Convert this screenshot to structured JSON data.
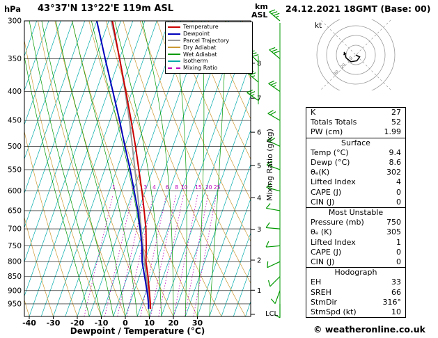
{
  "header": {
    "pressure_unit": "hPa",
    "station": "43°37'N 13°22'E 119m ASL",
    "km_label": "km",
    "asl_label": "ASL",
    "datetime": "24.12.2021 18GMT (Base: 00)",
    "kt_label": "kt"
  },
  "axes": {
    "bottom_label": "Dewpoint / Temperature (°C)",
    "right_label": "Mixing Ratio (g/kg)",
    "lcl_label": "LCL"
  },
  "legend": {
    "items": [
      {
        "label": "Temperature",
        "color": "#cc0000",
        "dash": false
      },
      {
        "label": "Dewpoint",
        "color": "#0000bb",
        "dash": false
      },
      {
        "label": "Parcel Trajectory",
        "color": "#999999",
        "dash": false
      },
      {
        "label": "Dry Adiabat",
        "color": "#cc9933",
        "dash": false
      },
      {
        "label": "Wet Adiabat",
        "color": "#009900",
        "dash": false
      },
      {
        "label": "Isotherm",
        "color": "#00aaaa",
        "dash": false
      },
      {
        "label": "Mixing Ratio",
        "color": "#bb00bb",
        "dash": true
      }
    ]
  },
  "chart_data": {
    "type": "skewt_log_p_sounding",
    "pressure_axis_hpa": [
      300,
      350,
      400,
      450,
      500,
      550,
      600,
      650,
      700,
      750,
      800,
      850,
      900,
      950
    ],
    "pressure_range_hpa": [
      300,
      1000
    ],
    "temp_axis_c": [
      -40,
      -30,
      -20,
      -10,
      0,
      10,
      20,
      30
    ],
    "km_asl_ticks": [
      1,
      2,
      3,
      4,
      5,
      6,
      7,
      8
    ],
    "mixing_ratio_g_kg": [
      1,
      2,
      3,
      4,
      6,
      8,
      10,
      15,
      20,
      25
    ],
    "temperature_profile_p_t": [
      [
        970,
        9.4
      ],
      [
        950,
        8.6
      ],
      [
        925,
        7.4
      ],
      [
        900,
        6.2
      ],
      [
        850,
        3.6
      ],
      [
        800,
        0.6
      ],
      [
        750,
        -1.6
      ],
      [
        700,
        -4.2
      ],
      [
        650,
        -7.6
      ],
      [
        600,
        -11.4
      ],
      [
        550,
        -15.8
      ],
      [
        500,
        -20.6
      ],
      [
        450,
        -26.2
      ],
      [
        400,
        -32.6
      ],
      [
        350,
        -40.0
      ],
      [
        300,
        -48.5
      ]
    ],
    "dewpoint_profile_p_t": [
      [
        970,
        8.6
      ],
      [
        950,
        7.8
      ],
      [
        925,
        6.6
      ],
      [
        900,
        5.2
      ],
      [
        850,
        2.2
      ],
      [
        800,
        -1.0
      ],
      [
        750,
        -3.4
      ],
      [
        700,
        -6.6
      ],
      [
        650,
        -10.2
      ],
      [
        600,
        -14.6
      ],
      [
        550,
        -19.4
      ],
      [
        500,
        -25.0
      ],
      [
        450,
        -31.0
      ],
      [
        400,
        -38.0
      ],
      [
        350,
        -46.0
      ],
      [
        300,
        -55.0
      ]
    ],
    "parcel_profile_p_t": [
      [
        970,
        9.4
      ],
      [
        950,
        8.2
      ],
      [
        925,
        6.9
      ],
      [
        900,
        5.6
      ],
      [
        850,
        2.9
      ],
      [
        800,
        0.0
      ],
      [
        750,
        -3.0
      ],
      [
        700,
        -6.2
      ],
      [
        650,
        -9.6
      ],
      [
        600,
        -13.3
      ],
      [
        550,
        -17.4
      ],
      [
        500,
        -21.9
      ],
      [
        450,
        -26.9
      ],
      [
        400,
        -32.9
      ],
      [
        350,
        -39.9
      ],
      [
        300,
        -49.0
      ]
    ],
    "wind_barbs": [
      {
        "p": 300,
        "dir": 310,
        "spd": 35
      },
      {
        "p": 350,
        "dir": 310,
        "spd": 30
      },
      {
        "p": 400,
        "dir": 305,
        "spd": 25
      },
      {
        "p": 450,
        "dir": 300,
        "spd": 20
      },
      {
        "p": 500,
        "dir": 295,
        "spd": 20
      },
      {
        "p": 550,
        "dir": 290,
        "spd": 15
      },
      {
        "p": 600,
        "dir": 285,
        "spd": 15
      },
      {
        "p": 650,
        "dir": 280,
        "spd": 10
      },
      {
        "p": 700,
        "dir": 275,
        "spd": 10
      },
      {
        "p": 750,
        "dir": 265,
        "spd": 10
      },
      {
        "p": 800,
        "dir": 245,
        "spd": 10
      },
      {
        "p": 850,
        "dir": 225,
        "spd": 10
      },
      {
        "p": 900,
        "dir": 200,
        "spd": 10
      },
      {
        "p": 950,
        "dir": 180,
        "spd": 10
      }
    ],
    "wind_barbs_inner": [
      {
        "p": 355,
        "dir": 315,
        "spd": 30
      },
      {
        "p": 385,
        "dir": 310,
        "spd": 25
      },
      {
        "p": 415,
        "dir": 305,
        "spd": 25
      }
    ],
    "hodograph": {
      "rings_kt": [
        10,
        20,
        30,
        40
      ],
      "trace_uv_kt": [
        [
          0,
          0
        ],
        [
          4,
          -2
        ],
        [
          1,
          -6
        ],
        [
          -5,
          -7
        ],
        [
          -10,
          -3
        ],
        [
          -12,
          3
        ]
      ]
    }
  },
  "table": {
    "sections": [
      {
        "header": "",
        "rows": [
          [
            "K",
            "27"
          ],
          [
            "Totals Totals",
            "52"
          ],
          [
            "PW (cm)",
            "1.99"
          ]
        ]
      },
      {
        "header": "Surface",
        "rows": [
          [
            "Temp (°C)",
            "9.4"
          ],
          [
            "Dewp (°C)",
            "8.6"
          ],
          [
            "θₑ(K)",
            "302"
          ],
          [
            "Lifted Index",
            "4"
          ],
          [
            "CAPE (J)",
            "0"
          ],
          [
            "CIN (J)",
            "0"
          ]
        ]
      },
      {
        "header": "Most Unstable",
        "rows": [
          [
            "Pressure (mb)",
            "750"
          ],
          [
            "θₑ (K)",
            "305"
          ],
          [
            "Lifted Index",
            "1"
          ],
          [
            "CAPE (J)",
            "0"
          ],
          [
            "CIN (J)",
            "0"
          ]
        ]
      },
      {
        "header": "Hodograph",
        "rows": [
          [
            "EH",
            "33"
          ],
          [
            "SREH",
            "66"
          ],
          [
            "StmDir",
            "316°"
          ],
          [
            "StmSpd (kt)",
            "10"
          ]
        ]
      }
    ]
  },
  "footer": {
    "copyright": "© weatheronline.co.uk"
  }
}
